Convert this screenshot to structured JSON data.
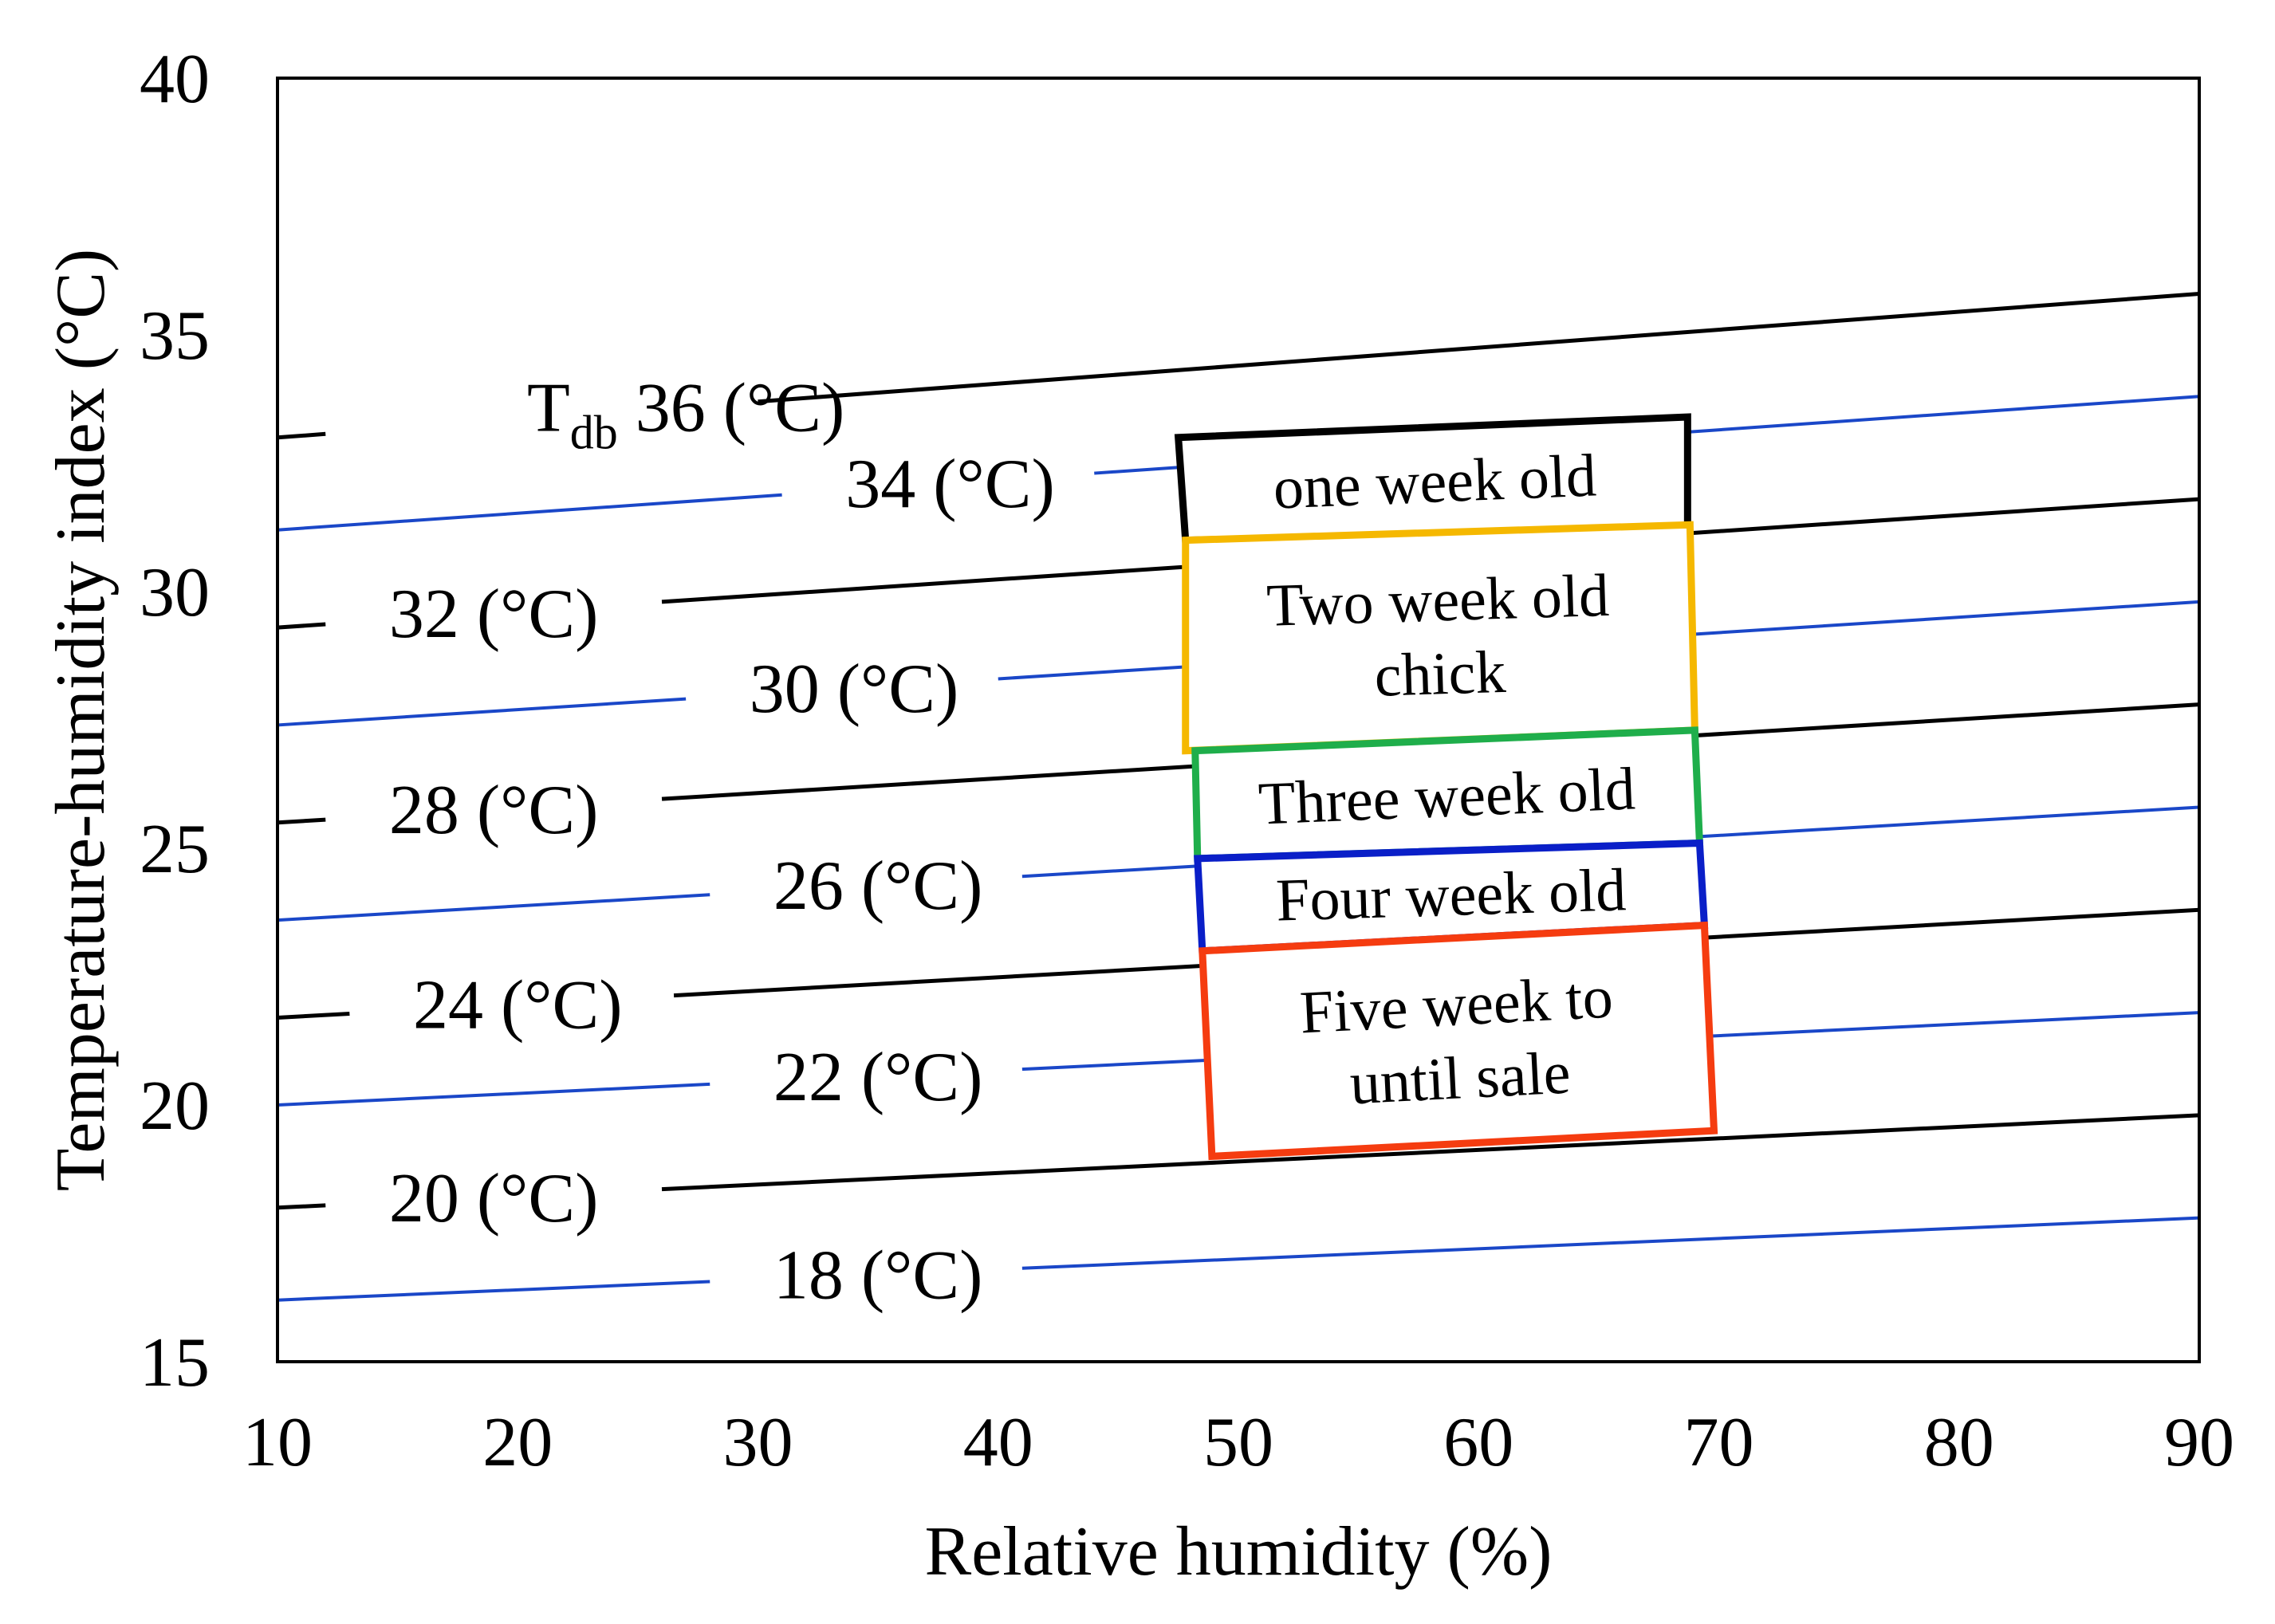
{
  "chart_data": {
    "type": "line",
    "xlabel": "Relative humidity (%)",
    "ylabel": "Temperature-humidity index (°C)",
    "xlim": [
      10,
      90
    ],
    "ylim": [
      15,
      40
    ],
    "xticks": [
      "10",
      "20",
      "30",
      "40",
      "50",
      "60",
      "70",
      "80",
      "90"
    ],
    "yticks": [
      "15",
      "20",
      "25",
      "30",
      "35",
      "40"
    ],
    "grid": false,
    "colors": {
      "black_series": "#000000",
      "blue_series": "#1a47c8"
    },
    "series": [
      {
        "name": "T_db 36 (°C)",
        "label_main": "T",
        "label_sub": "db",
        "label_rest": " 36 (°C)",
        "color": "black",
        "x": [
          10,
          90
        ],
        "y": [
          33.0,
          35.8
        ],
        "label_x": 27,
        "label_gap": [
          12,
          30
        ]
      },
      {
        "name": "34 (°C)",
        "label_main": "34 (°C)",
        "color": "blue",
        "x": [
          10,
          90
        ],
        "y": [
          31.2,
          33.8
        ],
        "label_x": 38,
        "label_gap": [
          31,
          44
        ]
      },
      {
        "name": "32 (°C)",
        "label_main": "32 (°C)",
        "color": "black",
        "x": [
          10,
          90
        ],
        "y": [
          29.3,
          31.8
        ],
        "label_x": 19,
        "label_gap": [
          12,
          26
        ]
      },
      {
        "name": "30 (°C)",
        "label_main": "30 (°C)",
        "color": "blue",
        "x": [
          10,
          90
        ],
        "y": [
          27.4,
          29.8
        ],
        "label_x": 34,
        "label_gap": [
          27,
          40
        ]
      },
      {
        "name": "28 (°C)",
        "label_main": "28 (°C)",
        "color": "black",
        "x": [
          10,
          90
        ],
        "y": [
          25.5,
          27.8
        ],
        "label_x": 19,
        "label_gap": [
          12,
          26
        ]
      },
      {
        "name": "26 (°C)",
        "label_main": "26 (°C)",
        "color": "blue",
        "x": [
          10,
          90
        ],
        "y": [
          23.6,
          25.8
        ],
        "label_x": 35,
        "label_gap": [
          28,
          41
        ]
      },
      {
        "name": "24 (°C)",
        "label_main": "24 (°C)",
        "color": "black",
        "x": [
          10,
          90
        ],
        "y": [
          21.7,
          23.8
        ],
        "label_x": 20,
        "label_gap": [
          13,
          26.5
        ]
      },
      {
        "name": "22 (°C)",
        "label_main": "22 (°C)",
        "color": "blue",
        "x": [
          10,
          90
        ],
        "y": [
          20.0,
          21.8
        ],
        "label_x": 35,
        "label_gap": [
          28,
          41
        ]
      },
      {
        "name": "20 (°C)",
        "label_main": "20 (°C)",
        "color": "black",
        "x": [
          10,
          90
        ],
        "y": [
          18.0,
          19.8
        ],
        "label_x": 19,
        "label_gap": [
          12,
          26
        ]
      },
      {
        "name": "18 (°C)",
        "label_main": "18 (°C)",
        "color": "blue",
        "x": [
          10,
          90
        ],
        "y": [
          16.2,
          17.8
        ],
        "label_x": 35,
        "label_gap": [
          28,
          41
        ]
      }
    ],
    "annotations": [
      {
        "text": [
          "one week old"
        ],
        "color": "#000000",
        "corners": [
          [
            47.5,
            33.0
          ],
          [
            68.7,
            33.4
          ],
          [
            68.7,
            31.2
          ],
          [
            47.8,
            31.0
          ]
        ]
      },
      {
        "text": [
          "Two week old",
          "chick"
        ],
        "color": "#f5b800",
        "corners": [
          [
            47.8,
            31.0
          ],
          [
            68.8,
            31.3
          ],
          [
            69.0,
            27.3
          ],
          [
            47.8,
            26.9
          ]
        ]
      },
      {
        "text": [
          "Three week old"
        ],
        "color": "#1fae4b",
        "corners": [
          [
            48.2,
            26.9
          ],
          [
            69.0,
            27.3
          ],
          [
            69.2,
            25.1
          ],
          [
            48.3,
            24.8
          ]
        ]
      },
      {
        "text": [
          "Four week old"
        ],
        "color": "#0a1fc8",
        "corners": [
          [
            48.3,
            24.8
          ],
          [
            69.2,
            25.1
          ],
          [
            69.4,
            23.5
          ],
          [
            48.5,
            23.0
          ]
        ]
      },
      {
        "text": [
          "Five week to",
          "until sale"
        ],
        "color": "#f53c10",
        "corners": [
          [
            48.5,
            23.0
          ],
          [
            69.4,
            23.5
          ],
          [
            69.8,
            19.5
          ],
          [
            48.9,
            19.0
          ]
        ]
      }
    ]
  }
}
